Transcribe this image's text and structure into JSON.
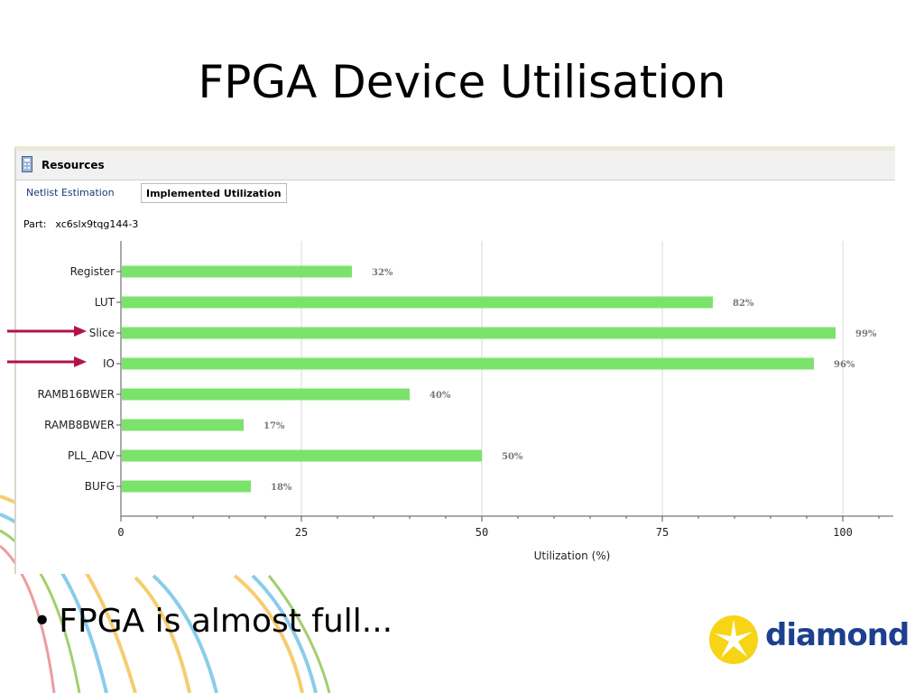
{
  "slide": {
    "title": "FPGA Device Utilisation",
    "bullets": [
      "FPGA is almost full..."
    ],
    "logo_text": "diamond"
  },
  "panel": {
    "title": "Resources",
    "tabs": [
      {
        "label": "Netlist Estimation",
        "selected": false
      },
      {
        "label": "Implemented Utilization",
        "selected": true
      }
    ],
    "part_label": "Part:",
    "part_value": "xc6slx9tqg144-3"
  },
  "colors": {
    "bar": "#7be36b",
    "arrow": "#b0124b",
    "logo_blue": "#1d3f8f",
    "logo_yellow": "#f5d516",
    "data_label": "#777777"
  },
  "chart_data": {
    "type": "bar",
    "orientation": "horizontal",
    "categories": [
      "Register",
      "LUT",
      "Slice",
      "IO",
      "RAMB16BWER",
      "RAMB8BWER",
      "PLL_ADV",
      "BUFG"
    ],
    "values": [
      32,
      82,
      99,
      96,
      40,
      17,
      50,
      18
    ],
    "data_labels": [
      "32%",
      "82%",
      "99%",
      "96%",
      "40%",
      "17%",
      "50%",
      "18%"
    ],
    "xlabel": "Utilization (%)",
    "xlim": [
      0,
      107
    ],
    "xticks": [
      0,
      25,
      50,
      75,
      100
    ],
    "grid": true,
    "highlighted_categories": [
      "Slice",
      "IO"
    ]
  }
}
